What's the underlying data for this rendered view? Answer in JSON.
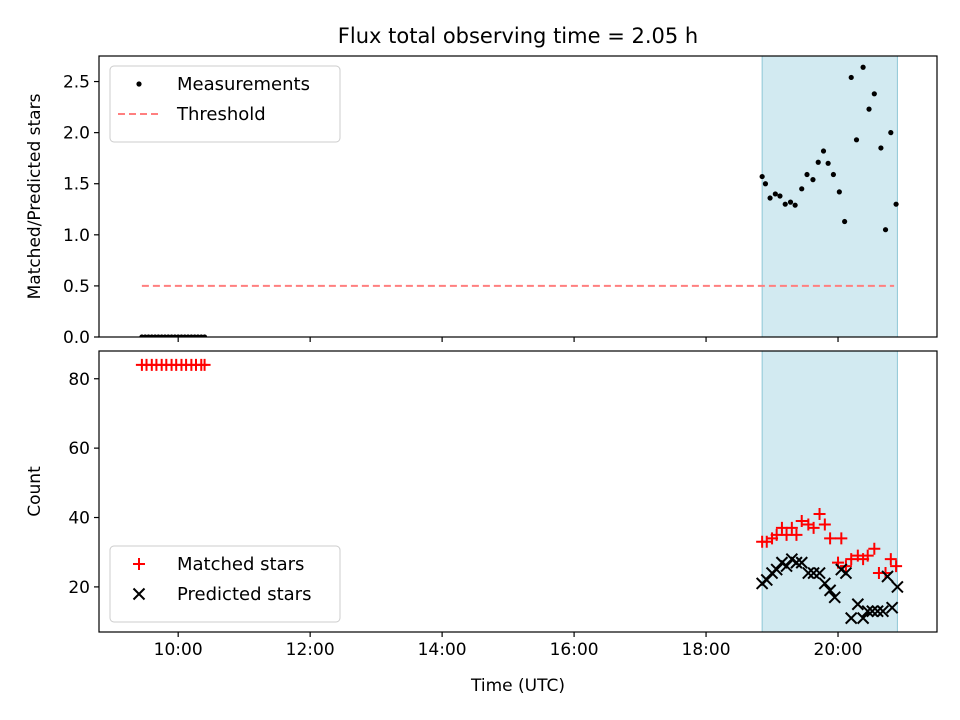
{
  "chart_data": {
    "title": "Flux total observing time = 2.05 h",
    "x_axis": {
      "label": "Time (UTC)",
      "unit": "hours",
      "range": [
        8.8,
        21.5
      ],
      "ticks": [
        {
          "value": 10,
          "label": "10:00"
        },
        {
          "value": 12,
          "label": "12:00"
        },
        {
          "value": 14,
          "label": "14:00"
        },
        {
          "value": 16,
          "label": "16:00"
        },
        {
          "value": 18,
          "label": "18:00"
        },
        {
          "value": 20,
          "label": "20:00"
        }
      ]
    },
    "shaded_interval": {
      "x": [
        18.85,
        20.9
      ],
      "color": "#add8e6"
    },
    "panels": [
      {
        "type": "scatter",
        "ylabel": "Matched/Predicted stars",
        "ylim": [
          0,
          2.75
        ],
        "yticks": [
          "0.0",
          "0.5",
          "1.0",
          "1.5",
          "2.0",
          "2.5"
        ],
        "legend": {
          "placement": "upper-left"
        },
        "series": [
          {
            "name": "Measurements",
            "marker": "dot",
            "color": "#000000",
            "points": [
              [
                9.45,
                0
              ],
              [
                9.5,
                0
              ],
              [
                9.55,
                0
              ],
              [
                9.6,
                0
              ],
              [
                9.65,
                0
              ],
              [
                9.7,
                0
              ],
              [
                9.75,
                0
              ],
              [
                9.8,
                0
              ],
              [
                9.85,
                0
              ],
              [
                9.9,
                0
              ],
              [
                9.95,
                0
              ],
              [
                10.0,
                0
              ],
              [
                10.05,
                0
              ],
              [
                10.1,
                0
              ],
              [
                10.15,
                0
              ],
              [
                10.2,
                0
              ],
              [
                10.25,
                0
              ],
              [
                10.3,
                0
              ],
              [
                10.35,
                0
              ],
              [
                10.4,
                0
              ],
              [
                18.85,
                1.57
              ],
              [
                18.9,
                1.5
              ],
              [
                18.97,
                1.36
              ],
              [
                19.05,
                1.4
              ],
              [
                19.12,
                1.38
              ],
              [
                19.2,
                1.3
              ],
              [
                19.28,
                1.32
              ],
              [
                19.35,
                1.29
              ],
              [
                19.45,
                1.45
              ],
              [
                19.53,
                1.59
              ],
              [
                19.62,
                1.54
              ],
              [
                19.7,
                1.71
              ],
              [
                19.78,
                1.82
              ],
              [
                19.85,
                1.7
              ],
              [
                19.93,
                1.59
              ],
              [
                20.02,
                1.42
              ],
              [
                20.1,
                1.13
              ],
              [
                20.2,
                2.54
              ],
              [
                20.28,
                1.93
              ],
              [
                20.38,
                2.64
              ],
              [
                20.47,
                2.23
              ],
              [
                20.55,
                2.38
              ],
              [
                20.65,
                1.85
              ],
              [
                20.72,
                1.05
              ],
              [
                20.8,
                2.0
              ],
              [
                20.88,
                1.3
              ]
            ]
          },
          {
            "name": "Threshold",
            "line": "dashed",
            "color": "#ff7f7f",
            "points": [
              [
                9.45,
                0.5
              ],
              [
                20.85,
                0.5
              ]
            ]
          }
        ]
      },
      {
        "type": "scatter",
        "ylabel": "Count",
        "ylim": [
          7,
          88
        ],
        "yticks": [
          "20",
          "40",
          "60",
          "80"
        ],
        "legend": {
          "placement": "lower-left"
        },
        "series": [
          {
            "name": "Matched stars",
            "marker": "plus",
            "color": "#ff0000",
            "points": [
              [
                9.45,
                84
              ],
              [
                9.52,
                84
              ],
              [
                9.6,
                84
              ],
              [
                9.67,
                84
              ],
              [
                9.75,
                84
              ],
              [
                9.82,
                84
              ],
              [
                9.9,
                84
              ],
              [
                9.97,
                84
              ],
              [
                10.05,
                84
              ],
              [
                10.12,
                84
              ],
              [
                10.2,
                84
              ],
              [
                10.27,
                84
              ],
              [
                10.35,
                84
              ],
              [
                10.4,
                84
              ],
              [
                18.85,
                33
              ],
              [
                18.92,
                33
              ],
              [
                19.0,
                34
              ],
              [
                19.07,
                35
              ],
              [
                19.15,
                37
              ],
              [
                19.22,
                35
              ],
              [
                19.3,
                37
              ],
              [
                19.37,
                35
              ],
              [
                19.45,
                39
              ],
              [
                19.55,
                38
              ],
              [
                19.63,
                37
              ],
              [
                19.72,
                41
              ],
              [
                19.8,
                38
              ],
              [
                19.88,
                34
              ],
              [
                20.0,
                27
              ],
              [
                20.05,
                34
              ],
              [
                20.12,
                26
              ],
              [
                20.2,
                28
              ],
              [
                20.3,
                29
              ],
              [
                20.38,
                28
              ],
              [
                20.45,
                29
              ],
              [
                20.55,
                31
              ],
              [
                20.62,
                24
              ],
              [
                20.72,
                24
              ],
              [
                20.8,
                28
              ],
              [
                20.88,
                26
              ]
            ]
          },
          {
            "name": "Predicted stars",
            "marker": "x",
            "color": "#000000",
            "points": [
              [
                18.85,
                21
              ],
              [
                18.92,
                22
              ],
              [
                19.0,
                24
              ],
              [
                19.07,
                25
              ],
              [
                19.15,
                27
              ],
              [
                19.22,
                26
              ],
              [
                19.3,
                28
              ],
              [
                19.37,
                27
              ],
              [
                19.45,
                27
              ],
              [
                19.55,
                24
              ],
              [
                19.63,
                24
              ],
              [
                19.72,
                24
              ],
              [
                19.8,
                21
              ],
              [
                19.88,
                19
              ],
              [
                19.95,
                17
              ],
              [
                20.05,
                25
              ],
              [
                20.12,
                24
              ],
              [
                20.2,
                11
              ],
              [
                20.3,
                15
              ],
              [
                20.38,
                11
              ],
              [
                20.45,
                13
              ],
              [
                20.52,
                13
              ],
              [
                20.6,
                13
              ],
              [
                20.68,
                13
              ],
              [
                20.75,
                23
              ],
              [
                20.82,
                14
              ],
              [
                20.9,
                20
              ]
            ]
          }
        ]
      }
    ]
  }
}
